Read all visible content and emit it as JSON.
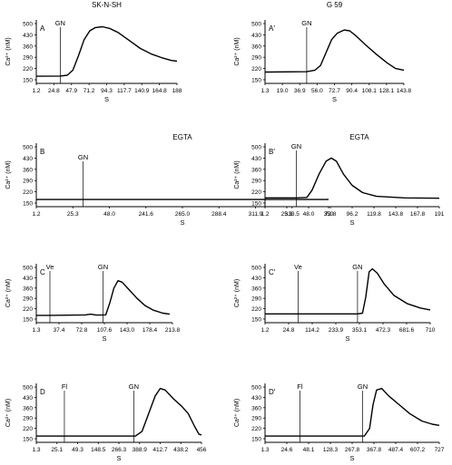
{
  "chart_data": [
    {
      "type": "line",
      "panel": "A",
      "col_title": "SK-N-SH",
      "above_label": "",
      "xlabel": "S",
      "ylabel": "Ca²⁺ (nM)",
      "yticks": [
        "500",
        "430",
        "360",
        "290",
        "220",
        "150"
      ],
      "xticks": [
        "1.2",
        "24.8",
        "47.9",
        "71.2",
        "94.3",
        "117.7",
        "140.9",
        "164.8",
        "188"
      ],
      "ylim": [
        150,
        500
      ],
      "markers": [
        {
          "label": "GN",
          "at": 0.17
        }
      ],
      "series": [
        {
          "points": [
            [
              0,
              172
            ],
            [
              0.17,
              173
            ],
            [
              0.22,
              178
            ],
            [
              0.26,
              210
            ],
            [
              0.3,
              300
            ],
            [
              0.34,
              400
            ],
            [
              0.38,
              455
            ],
            [
              0.42,
              475
            ],
            [
              0.47,
              480
            ],
            [
              0.52,
              470
            ],
            [
              0.58,
              445
            ],
            [
              0.66,
              395
            ],
            [
              0.74,
              345
            ],
            [
              0.82,
              310
            ],
            [
              0.9,
              285
            ],
            [
              0.96,
              270
            ],
            [
              1,
              266
            ]
          ]
        }
      ]
    },
    {
      "type": "line",
      "panel": "A′",
      "col_title": "G 59",
      "above_label": "",
      "xlabel": "S",
      "ylabel": "Ca²⁺ (nM)",
      "yticks": [
        "500",
        "430",
        "360",
        "290",
        "220",
        "150"
      ],
      "xticks": [
        "1.3",
        "19.0",
        "36.9",
        "56.0",
        "72.7",
        "90.4",
        "108.1",
        "128.1",
        "143.8"
      ],
      "ylim": [
        150,
        500
      ],
      "markers": [
        {
          "label": "GN",
          "at": 0.3
        }
      ],
      "series": [
        {
          "points": [
            [
              0,
              198
            ],
            [
              0.3,
              200
            ],
            [
              0.36,
              210
            ],
            [
              0.4,
              240
            ],
            [
              0.44,
              320
            ],
            [
              0.48,
              400
            ],
            [
              0.52,
              440
            ],
            [
              0.57,
              460
            ],
            [
              0.61,
              455
            ],
            [
              0.66,
              420
            ],
            [
              0.72,
              370
            ],
            [
              0.8,
              310
            ],
            [
              0.88,
              255
            ],
            [
              0.94,
              220
            ],
            [
              1,
              210
            ]
          ]
        }
      ]
    },
    {
      "type": "line",
      "panel": "B",
      "col_title": "",
      "above_label": "EGTA",
      "xlabel": "S",
      "ylabel": "Ca²⁺ (nM)",
      "yticks": [
        "500",
        "430",
        "360",
        "290",
        "220",
        "150"
      ],
      "xticks": [
        "1.2",
        "25.3",
        "48.0",
        "241.6",
        "265.0",
        "288.4",
        "311.9",
        "333.5",
        "350"
      ],
      "ylim": [
        150,
        500
      ],
      "markers": [
        {
          "label": "GN",
          "at": 0.16
        }
      ],
      "series": [
        {
          "points": [
            [
              0,
              172
            ],
            [
              1,
              172
            ]
          ]
        }
      ]
    },
    {
      "type": "line",
      "panel": "B′",
      "col_title": "",
      "above_label": "EGTA",
      "xlabel": "S",
      "ylabel": "Ca²⁺ (nM)",
      "yticks": [
        "500",
        "430",
        "360",
        "290",
        "220",
        "150"
      ],
      "xticks": [
        "1.2",
        "25.3",
        "48.0",
        "72.8",
        "96.2",
        "119.8",
        "143.8",
        "167.8",
        "191"
      ],
      "ylim": [
        150,
        500
      ],
      "markers": [
        {
          "label": "GN",
          "at": 0.18
        }
      ],
      "series": [
        {
          "points": [
            [
              0,
              182
            ],
            [
              0.18,
              182
            ],
            [
              0.24,
              185
            ],
            [
              0.27,
              230
            ],
            [
              0.31,
              330
            ],
            [
              0.35,
              410
            ],
            [
              0.38,
              430
            ],
            [
              0.41,
              410
            ],
            [
              0.45,
              330
            ],
            [
              0.5,
              260
            ],
            [
              0.56,
              215
            ],
            [
              0.64,
              192
            ],
            [
              0.8,
              182
            ],
            [
              1,
              180
            ]
          ]
        }
      ]
    },
    {
      "type": "line",
      "panel": "C",
      "col_title": "",
      "above_label": "",
      "xlabel": "S",
      "ylabel": "Ca²⁺ (nM)",
      "yticks": [
        "500",
        "430",
        "360",
        "290",
        "220",
        "150"
      ],
      "xticks": [
        "1.3",
        "37.4",
        "72.8",
        "107.6",
        "143.0",
        "178.4",
        "213.8"
      ],
      "ylim": [
        150,
        500
      ],
      "markers": [
        {
          "label": "Ve",
          "at": 0.1
        },
        {
          "label": "GN",
          "at": 0.49
        }
      ],
      "series": [
        {
          "points": [
            [
              0,
              175
            ],
            [
              0.1,
              175
            ],
            [
              0.36,
              178
            ],
            [
              0.4,
              183
            ],
            [
              0.44,
              177
            ],
            [
              0.51,
              178
            ],
            [
              0.54,
              260
            ],
            [
              0.57,
              360
            ],
            [
              0.6,
              410
            ],
            [
              0.63,
              400
            ],
            [
              0.68,
              350
            ],
            [
              0.74,
              290
            ],
            [
              0.8,
              240
            ],
            [
              0.86,
              210
            ],
            [
              0.93,
              190
            ],
            [
              0.98,
              183
            ]
          ]
        }
      ]
    },
    {
      "type": "line",
      "panel": "C′",
      "col_title": "",
      "above_label": "",
      "xlabel": "S",
      "ylabel": "Ca²⁺ (nM)",
      "yticks": [
        "500",
        "430",
        "360",
        "290",
        "220",
        "150"
      ],
      "xticks": [
        "1.2",
        "24.8",
        "114.2",
        "233.9",
        "353.1",
        "472.3",
        "681.6",
        "710"
      ],
      "ylim": [
        150,
        500
      ],
      "markers": [
        {
          "label": "Ve",
          "at": 0.2
        },
        {
          "label": "GN",
          "at": 0.56
        }
      ],
      "series": [
        {
          "points": [
            [
              0,
              185
            ],
            [
              0.56,
              185
            ],
            [
              0.59,
              190
            ],
            [
              0.61,
              300
            ],
            [
              0.63,
              470
            ],
            [
              0.65,
              490
            ],
            [
              0.68,
              460
            ],
            [
              0.72,
              390
            ],
            [
              0.78,
              310
            ],
            [
              0.86,
              255
            ],
            [
              0.94,
              225
            ],
            [
              1,
              212
            ]
          ]
        }
      ]
    },
    {
      "type": "line",
      "panel": "D",
      "col_title": "",
      "above_label": "",
      "xlabel": "S",
      "ylabel": "Ca²⁺ (nM)",
      "yticks": [
        "500",
        "430",
        "360",
        "290",
        "220",
        "150"
      ],
      "xticks": [
        "1.3",
        "25.1",
        "49.3",
        "148.5",
        "266.3",
        "388.9",
        "412.7",
        "438.2",
        "456"
      ],
      "ylim": [
        150,
        500
      ],
      "markers": [
        {
          "label": "Fl",
          "at": 0.17
        },
        {
          "label": "GN",
          "at": 0.59
        }
      ],
      "series": [
        {
          "points": [
            [
              0,
              168
            ],
            [
              0.6,
              168
            ],
            [
              0.64,
              200
            ],
            [
              0.68,
              320
            ],
            [
              0.72,
              440
            ],
            [
              0.75,
              490
            ],
            [
              0.78,
              480
            ],
            [
              0.83,
              420
            ],
            [
              0.88,
              370
            ],
            [
              0.92,
              320
            ],
            [
              0.96,
              230
            ],
            [
              0.985,
              180
            ],
            [
              1,
              176
            ]
          ]
        }
      ]
    },
    {
      "type": "line",
      "panel": "D′",
      "col_title": "",
      "above_label": "",
      "xlabel": "S",
      "ylabel": "Ca²⁺ (nM)",
      "yticks": [
        "500",
        "430",
        "360",
        "290",
        "220",
        "150"
      ],
      "xticks": [
        "1.3",
        "24.6",
        "48.1",
        "128.3",
        "267.8",
        "367.8",
        "487.4",
        "607.2",
        "727"
      ],
      "ylim": [
        150,
        500
      ],
      "markers": [
        {
          "label": "Fl",
          "at": 0.2
        },
        {
          "label": "GN",
          "at": 0.56
        }
      ],
      "series": [
        {
          "points": [
            [
              0,
              168
            ],
            [
              0.57,
              168
            ],
            [
              0.6,
              220
            ],
            [
              0.62,
              380
            ],
            [
              0.64,
              480
            ],
            [
              0.67,
              490
            ],
            [
              0.71,
              440
            ],
            [
              0.77,
              380
            ],
            [
              0.83,
              320
            ],
            [
              0.9,
              270
            ],
            [
              0.96,
              248
            ],
            [
              1,
              240
            ]
          ]
        }
      ]
    }
  ]
}
